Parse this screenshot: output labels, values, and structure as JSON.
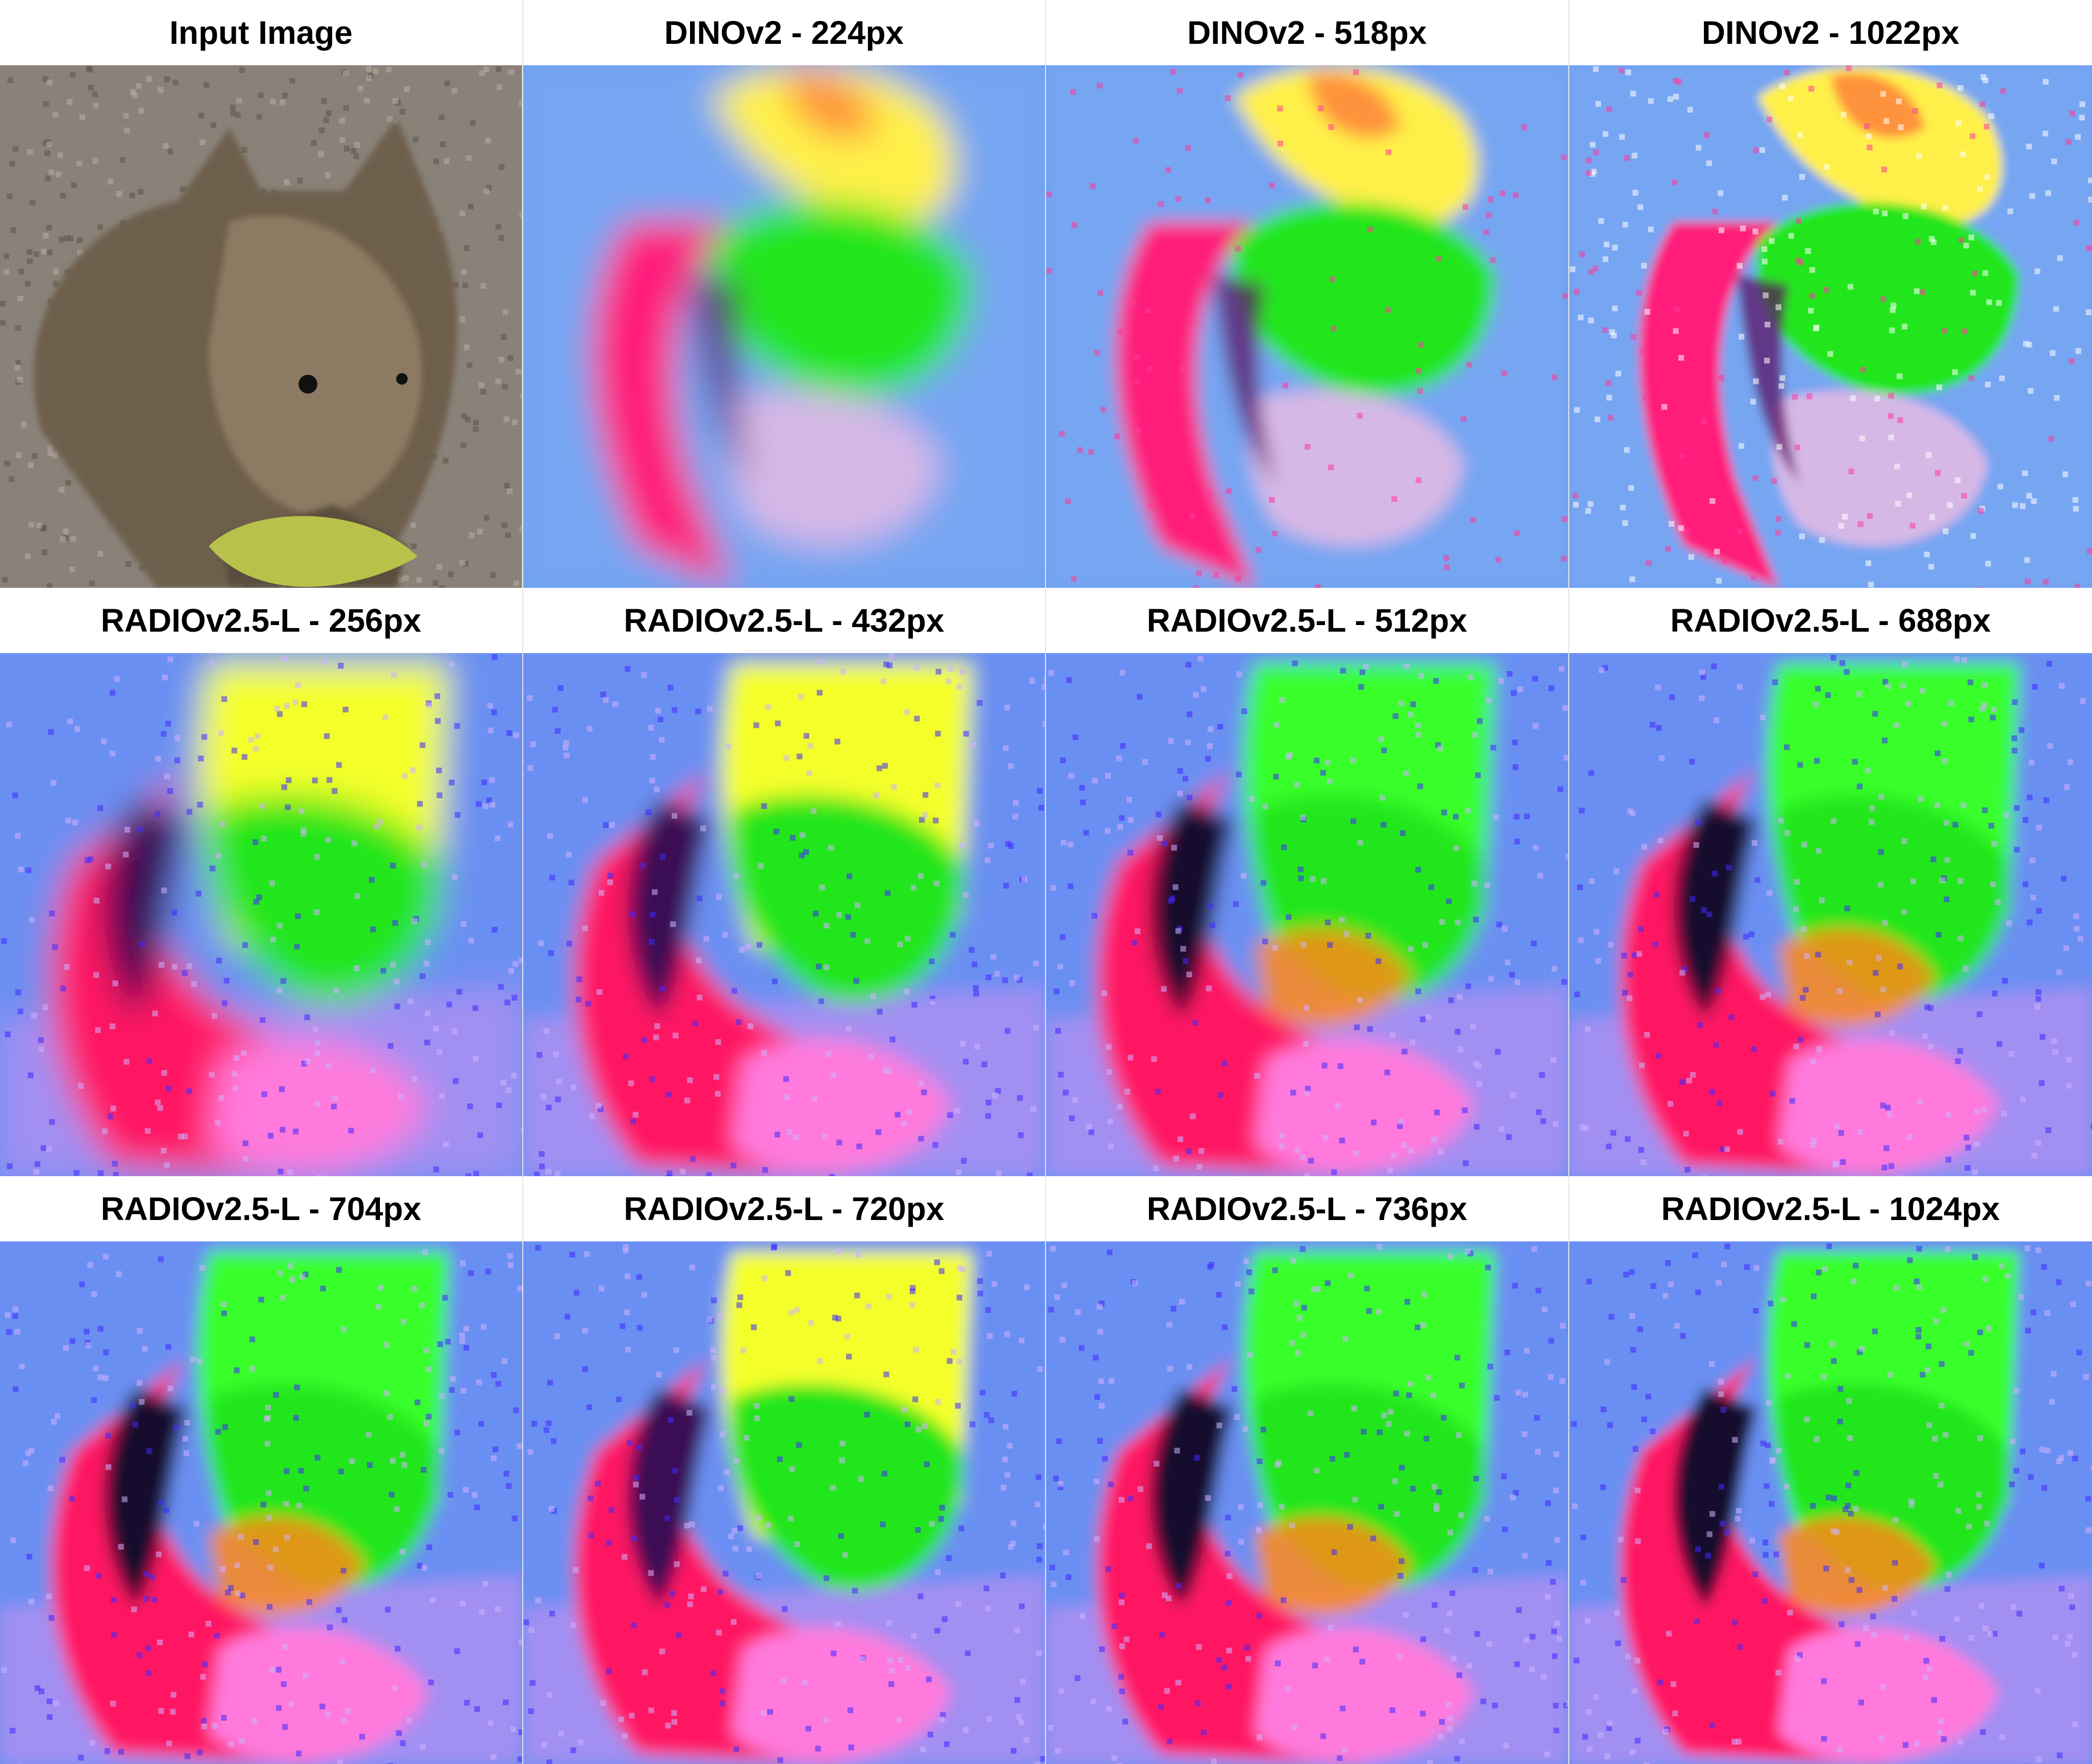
{
  "figure": {
    "panels": [
      {
        "label": "Input Image",
        "kind": "photo"
      },
      {
        "label": "DINOv2 - 224px",
        "kind": "dino"
      },
      {
        "label": "DINOv2 - 518px",
        "kind": "dino"
      },
      {
        "label": "DINOv2 - 1022px",
        "kind": "dino"
      },
      {
        "label": "RADIOv2.5-L - 256px",
        "kind": "radio-yellow"
      },
      {
        "label": "RADIOv2.5-L - 432px",
        "kind": "radio-yellow"
      },
      {
        "label": "RADIOv2.5-L - 512px",
        "kind": "radio"
      },
      {
        "label": "RADIOv2.5-L - 688px",
        "kind": "radio"
      },
      {
        "label": "RADIOv2.5-L - 704px",
        "kind": "radio"
      },
      {
        "label": "RADIOv2.5-L - 720px",
        "kind": "radio-yellow"
      },
      {
        "label": "RADIOv2.5-L - 736px",
        "kind": "radio"
      },
      {
        "label": "RADIOv2.5-L - 1024px",
        "kind": "radio"
      }
    ]
  }
}
